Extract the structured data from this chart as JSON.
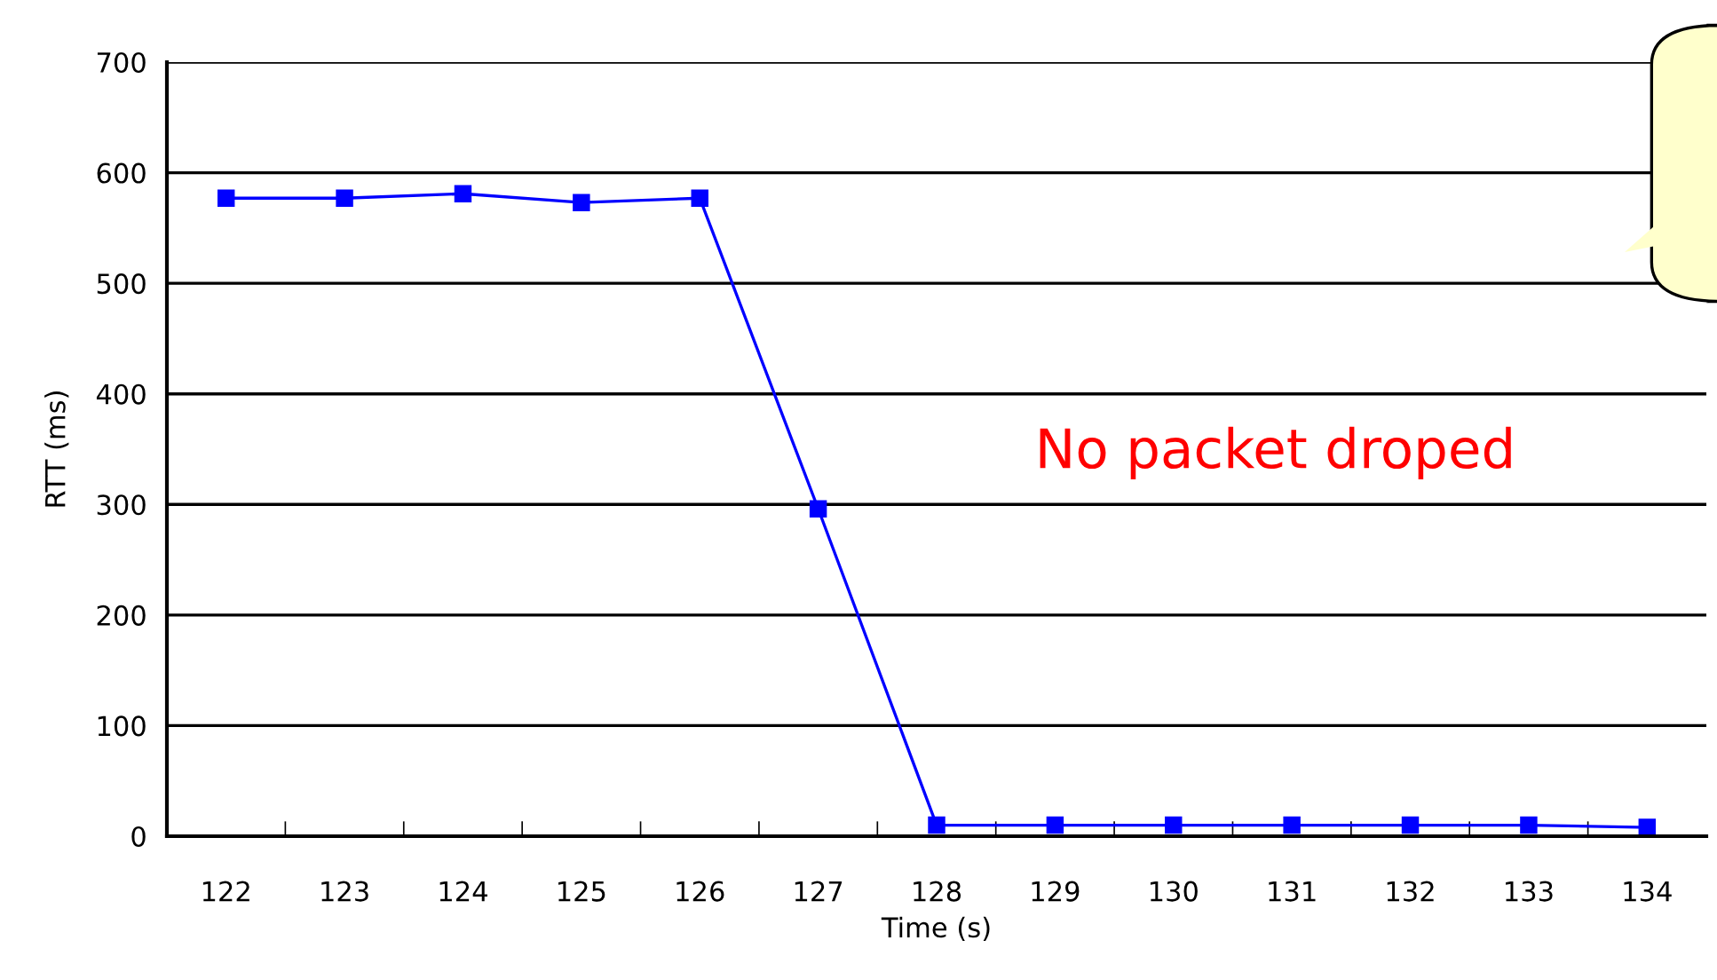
{
  "chart_data": {
    "type": "line",
    "xlabel": "Time (s)",
    "ylabel": "RTT (ms)",
    "categories": [
      "122",
      "123",
      "124",
      "125",
      "126",
      "127",
      "128",
      "129",
      "130",
      "131",
      "132",
      "133",
      "134"
    ],
    "series": [
      {
        "color": "#0000ff",
        "values": [
          577,
          577,
          581,
          573,
          577,
          296,
          10,
          10,
          10,
          10,
          10,
          10,
          8
        ]
      }
    ],
    "ylim": [
      0,
      700
    ],
    "yticks": [
      0,
      100,
      200,
      300,
      400,
      500,
      600,
      700
    ],
    "grid": "y",
    "marker": "square",
    "line_style": "solid",
    "annotations": [
      "No packet droped"
    ]
  }
}
